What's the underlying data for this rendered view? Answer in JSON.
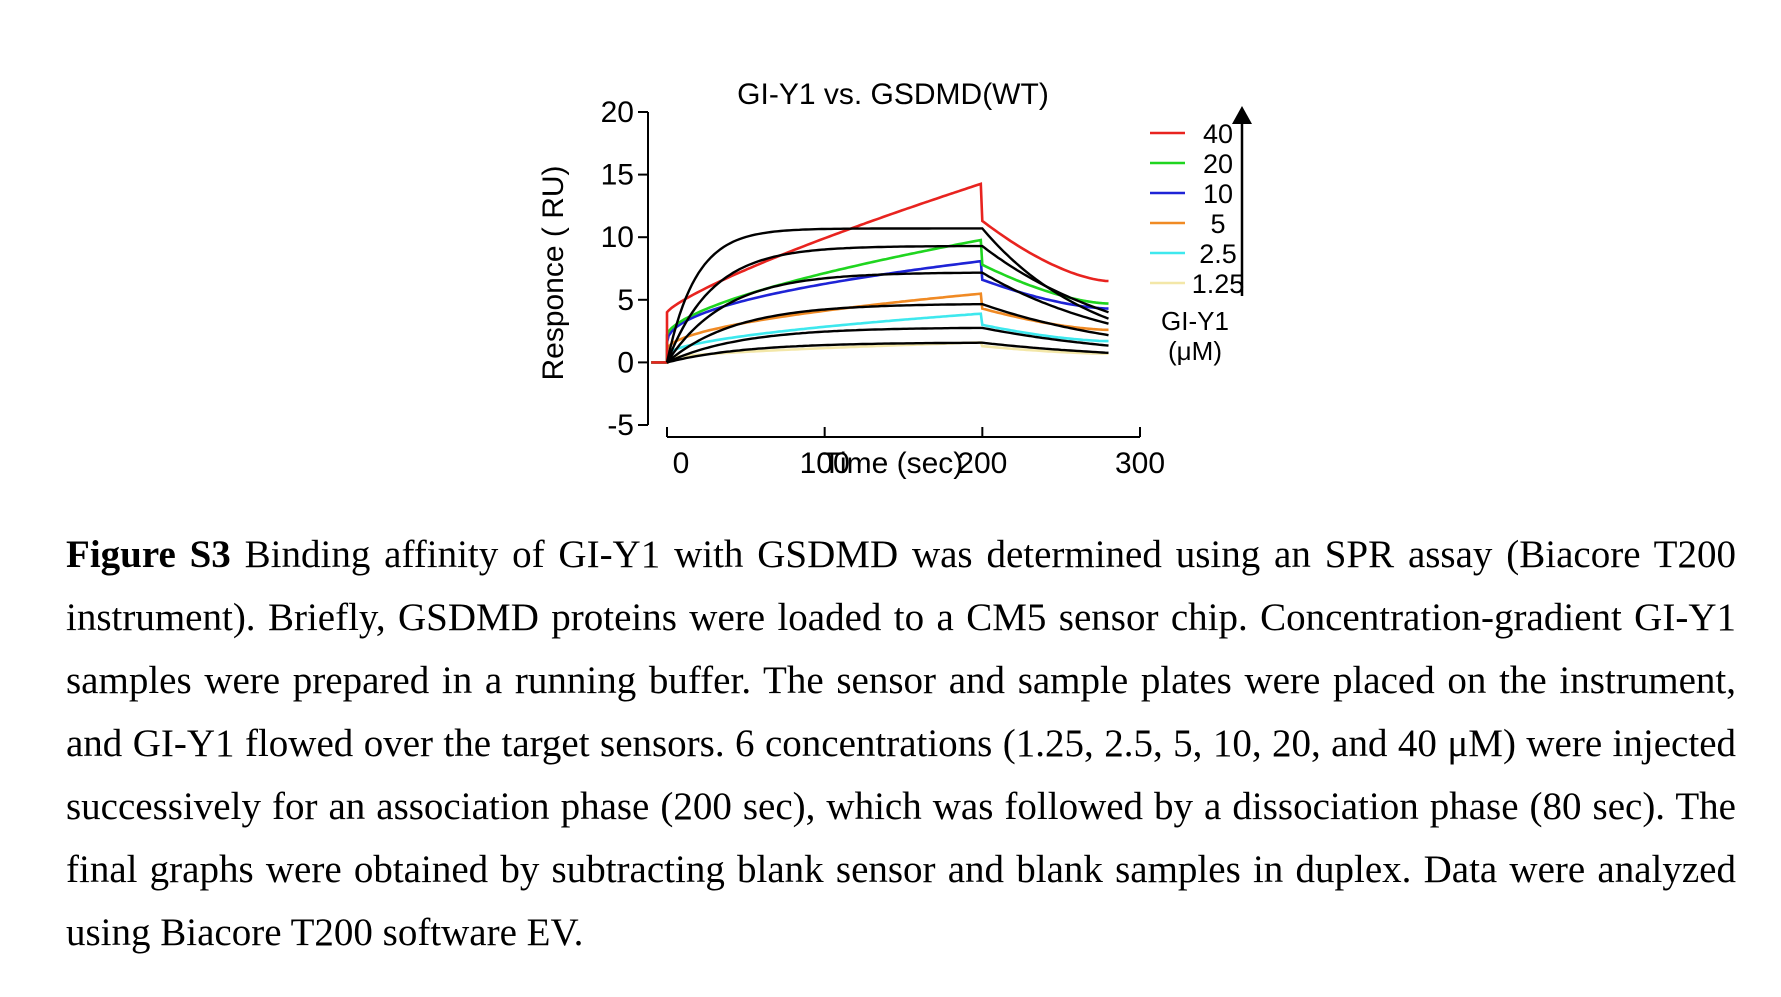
{
  "figure": {
    "caption_label": "Figure S3",
    "caption_text": " Binding affinity of GI-Y1 with GSDMD was determined using an SPR assay (Biacore T200 instrument). Briefly, GSDMD proteins were loaded to a CM5 sensor chip. Concentration-gradient GI-Y1 samples were prepared in a running buffer. The sensor and sample plates were placed on the instrument, and GI-Y1 flowed over the target sensors. 6 concentrations (1.25, 2.5, 5, 10, 20, and 40 μM) were injected successively for an association phase (200 sec), which was followed by a dissociation phase (80 sec). The final graphs were obtained by subtracting blank sensor and blank samples in duplex. Data were analyzed using Biacore T200 software EV."
  },
  "chart_data": {
    "type": "line",
    "title": "GI-Y1 vs. GSDMD(WT)",
    "xlabel": "Time (sec)",
    "ylabel": "Responce ( RU)",
    "xlim": [
      0,
      300
    ],
    "ylim": [
      -5,
      20
    ],
    "xticks": [
      0,
      100,
      200,
      300
    ],
    "yticks": [
      -5,
      0,
      5,
      10,
      15,
      20
    ],
    "legend_title": "GI-Y1\n(μM)",
    "legend_placement": "right",
    "association_end": 200,
    "dissociation_end": 280,
    "baseline_start": -10,
    "series": [
      {
        "name": "40",
        "color": "#e8231f",
        "start": 4.0,
        "a_end": 14.3,
        "a_curve": 1.25,
        "d_drop": 3.0,
        "d_end": 6.5
      },
      {
        "name": "20",
        "color": "#1fd51f",
        "start": 2.2,
        "a_end": 9.8,
        "a_curve": 1.6,
        "d_drop": 2.0,
        "d_end": 4.7
      },
      {
        "name": "10",
        "color": "#1e23d6",
        "start": 1.6,
        "a_end": 8.1,
        "a_curve": 2.1,
        "d_drop": 1.5,
        "d_end": 4.3
      },
      {
        "name": "5",
        "color": "#f08a24",
        "start": 1.0,
        "a_end": 5.5,
        "a_curve": 1.9,
        "d_drop": 1.2,
        "d_end": 2.6
      },
      {
        "name": "2.5",
        "color": "#3ee8ee",
        "start": 0.6,
        "a_end": 3.9,
        "a_curve": 1.8,
        "d_drop": 0.9,
        "d_end": 1.7
      },
      {
        "name": "1.25",
        "color": "#f3e7a8",
        "start": 0.3,
        "a_end": 1.6,
        "a_curve": 1.6,
        "d_drop": 0.3,
        "d_end": 0.7
      }
    ],
    "fits": [
      {
        "rmax": 10.7,
        "k": 0.055,
        "kd": 0.014
      },
      {
        "rmax": 9.3,
        "k": 0.035,
        "kd": 0.0105
      },
      {
        "rmax": 7.2,
        "k": 0.027,
        "kd": 0.0105
      },
      {
        "rmax": 4.7,
        "k": 0.023,
        "kd": 0.0095
      },
      {
        "rmax": 2.8,
        "k": 0.021,
        "kd": 0.009
      },
      {
        "rmax": 1.6,
        "k": 0.02,
        "kd": 0.009
      }
    ]
  }
}
